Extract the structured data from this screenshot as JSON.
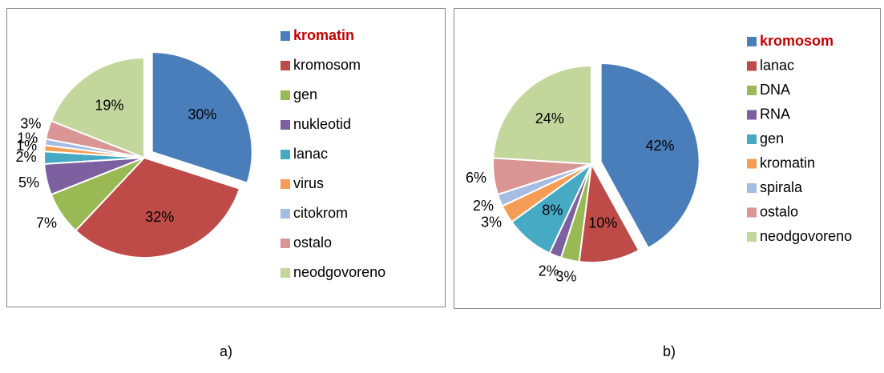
{
  "chart_data": [
    {
      "type": "pie",
      "caption": "a)",
      "categories": [
        "kromatin",
        "kromosom",
        "gen",
        "nukleotid",
        "lanac",
        "virus",
        "citokrom",
        "ostalo",
        "neodgovoreno"
      ],
      "values": [
        30,
        32,
        7,
        5,
        2,
        1,
        1,
        3,
        19
      ],
      "value_labels": [
        "30%",
        "32%",
        "7%",
        "5%",
        "2%",
        "1%",
        "1%",
        "3%",
        "19%"
      ],
      "colors": [
        "#4a7ebb",
        "#be4b48",
        "#98b954",
        "#7d60a0",
        "#46aac5",
        "#f59d56",
        "#a5bce3",
        "#da9694",
        "#c3d69b"
      ],
      "explode": 0,
      "highlight": {
        "index": 0,
        "color": "#c00000"
      }
    },
    {
      "type": "pie",
      "caption": "b)",
      "categories": [
        "kromosom",
        "lanac",
        "DNA",
        "RNA",
        "gen",
        "kromatin",
        "spirala",
        "ostalo",
        "neodgovoreno"
      ],
      "values": [
        42,
        10,
        3,
        2,
        8,
        3,
        2,
        6,
        24
      ],
      "value_labels": [
        "42%",
        "10%",
        "3%",
        "2%",
        "8%",
        "3%",
        "2%",
        "6%",
        "24%"
      ],
      "colors": [
        "#4a7ebb",
        "#be4b48",
        "#98b954",
        "#7d60a0",
        "#46aac5",
        "#f59d56",
        "#a5bce3",
        "#da9694",
        "#c3d69b"
      ],
      "explode": 0,
      "highlight": {
        "index": 0,
        "color": "#c00000"
      }
    }
  ]
}
